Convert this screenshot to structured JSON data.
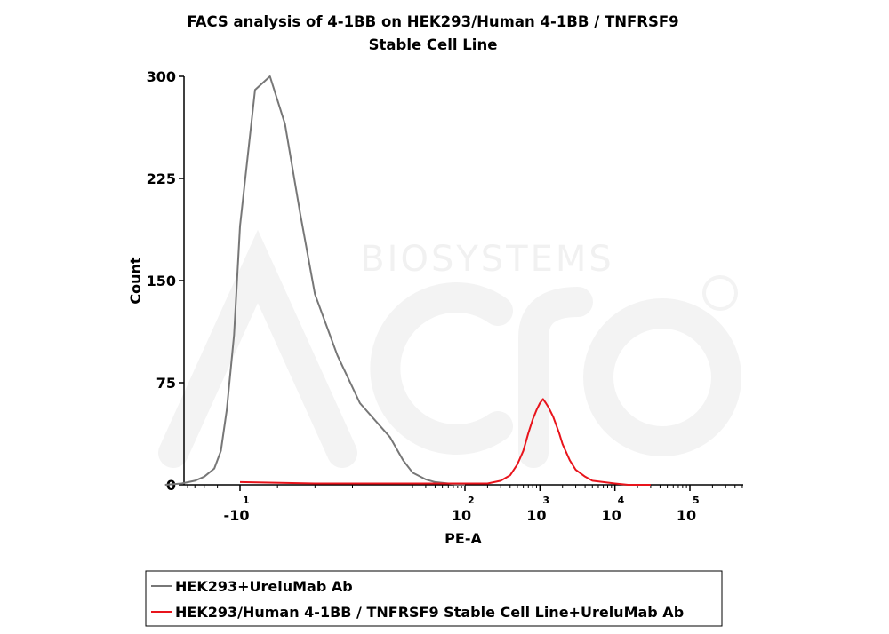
{
  "chart_data": {
    "type": "line",
    "title_line1": "FACS analysis of 4-1BB on HEK293/Human 4-1BB / TNFRSF9",
    "title_line2": "Stable Cell Line",
    "xlabel": "PE-A",
    "ylabel": "Count",
    "xscale": "biexponential",
    "ylim": [
      0,
      300
    ],
    "y_ticks": [
      0,
      75,
      150,
      225,
      300
    ],
    "x_ticks": [
      {
        "base": "-10",
        "exp": "1",
        "value": -10
      },
      {
        "base": "10",
        "exp": "2",
        "value": 100
      },
      {
        "base": "10",
        "exp": "3",
        "value": 1000
      },
      {
        "base": "10",
        "exp": "4",
        "value": 10000
      },
      {
        "base": "10",
        "exp": "5",
        "value": 100000
      }
    ],
    "grid": false,
    "legend_position": "bottom",
    "series": [
      {
        "name": "HEK293+UreluMab Ab",
        "color": "#777777",
        "x": [
          -100,
          -60,
          -40,
          -30,
          -22,
          -18,
          -15,
          -12,
          -10,
          -8,
          -6,
          -4,
          -2,
          0,
          3,
          6,
          10,
          15,
          20,
          30,
          40,
          60,
          80,
          100
        ],
        "y": [
          0,
          1,
          3,
          6,
          12,
          25,
          55,
          110,
          190,
          290,
          300,
          265,
          200,
          140,
          95,
          60,
          35,
          18,
          9,
          4,
          2,
          1,
          0,
          0
        ]
      },
      {
        "name": "HEK293/Human 4-1BB / TNFRSF9 Stable Cell Line+UreluMab Ab",
        "color": "#e8141c",
        "x": [
          -10,
          0,
          50,
          100,
          150,
          200,
          300,
          400,
          500,
          600,
          700,
          800,
          900,
          1000,
          1100,
          1200,
          1300,
          1500,
          1800,
          2000,
          2500,
          3000,
          4000,
          5000,
          7000,
          10000,
          15000,
          20000,
          30000
        ],
        "y": [
          2,
          1,
          1,
          1,
          1,
          1,
          3,
          7,
          15,
          25,
          38,
          48,
          55,
          60,
          63,
          60,
          57,
          50,
          38,
          30,
          18,
          11,
          6,
          3,
          2,
          1,
          0,
          0,
          0
        ]
      }
    ]
  },
  "watermark": {
    "text": "BIOSYSTEMS",
    "brand": "Acro"
  }
}
